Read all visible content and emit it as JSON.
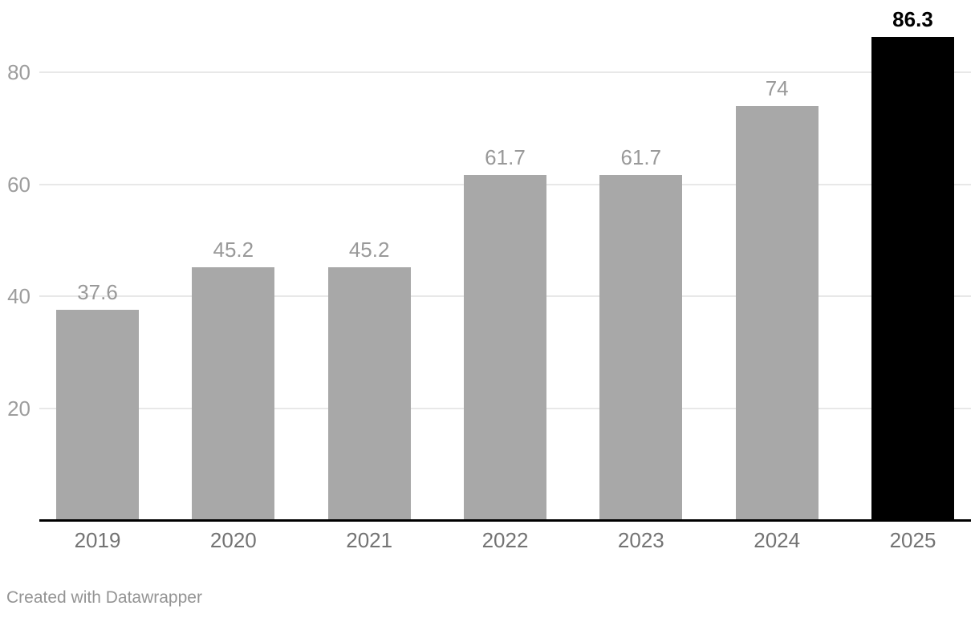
{
  "chart_data": {
    "type": "bar",
    "categories": [
      "2019",
      "2020",
      "2021",
      "2022",
      "2023",
      "2024",
      "2025"
    ],
    "values": [
      37.6,
      45.2,
      45.2,
      61.7,
      61.7,
      74,
      86.3
    ],
    "value_labels": [
      "37.6",
      "45.2",
      "45.2",
      "61.7",
      "61.7",
      "74",
      "86.3"
    ],
    "title": "",
    "xlabel": "",
    "ylabel": "",
    "ylim": [
      0,
      86.3
    ],
    "yticks": [
      20,
      40,
      60,
      80
    ],
    "grid": "horizontal",
    "legend": "none",
    "highlight_index": 6,
    "colors": {
      "bar_default": "#a8a8a8",
      "bar_highlight": "#000000",
      "value_label_default": "#999999",
      "value_label_highlight": "#000000",
      "x_label": "#737373",
      "y_tick_label": "#9d9d9d",
      "gridline": "#e8e8e8",
      "baseline": "#000000"
    }
  },
  "footer": {
    "attribution": "Created with Datawrapper"
  }
}
